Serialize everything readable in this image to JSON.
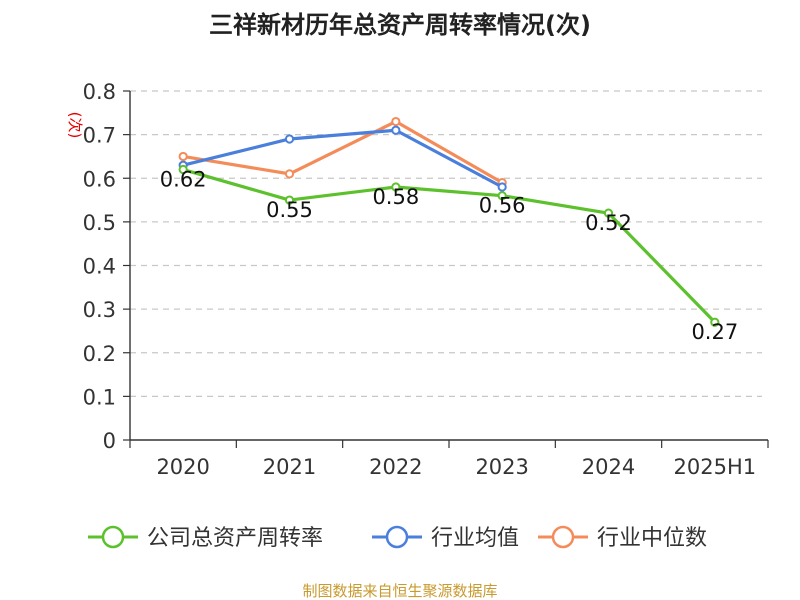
{
  "chart_data": {
    "type": "line",
    "title": "三祥新材历年总资产周转率情况(次)",
    "ylabel": "(次)",
    "xlabel": "",
    "categories": [
      "2020",
      "2021",
      "2022",
      "2023",
      "2024",
      "2025H1"
    ],
    "yticks": [
      "0",
      "0.1",
      "0.2",
      "0.3",
      "0.4",
      "0.5",
      "0.6",
      "0.7",
      "0.8"
    ],
    "ylim": [
      0,
      0.8
    ],
    "grid": true,
    "legend_position": "bottom",
    "series": [
      {
        "name": "公司总资产周转率",
        "color": "#5cc12c",
        "values": [
          0.62,
          0.55,
          0.58,
          0.56,
          0.52,
          0.27
        ],
        "labels": [
          "0.62",
          "0.55",
          "0.58",
          "0.56",
          "0.52",
          "0.27"
        ]
      },
      {
        "name": "行业均值",
        "color": "#4a7fdc",
        "values": [
          0.63,
          0.69,
          0.71,
          0.58,
          null,
          null
        ]
      },
      {
        "name": "行业中位数",
        "color": "#f48c5a",
        "values": [
          0.65,
          0.61,
          0.73,
          0.59,
          null,
          null
        ]
      }
    ],
    "source_note": "制图数据来自恒生聚源数据库"
  },
  "colors": {
    "axis": "#333333",
    "grid": "#c8c8c8",
    "ylabel": "#e60000",
    "source_note": "#c99a2e"
  }
}
